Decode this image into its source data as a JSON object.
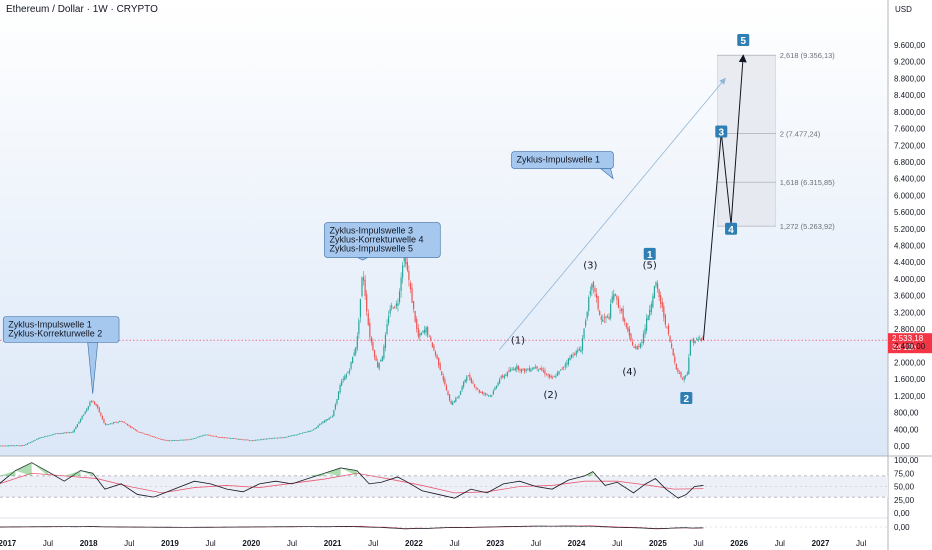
{
  "header": {
    "title": "Ethereum / Dollar · 1W · CRYPTO"
  },
  "chart_data": {
    "type": "candlestick",
    "symbol": "Ethereum / Dollar",
    "interval": "1W",
    "exchange": "CRYPTO",
    "currency_label": "USD",
    "x_tick_labels": [
      "2017",
      "Jul",
      "2018",
      "Jul",
      "2019",
      "Jul",
      "2020",
      "Jul",
      "2021",
      "Jul",
      "2022",
      "Jul",
      "2023",
      "Jul",
      "2024",
      "Jul",
      "2025",
      "Jul",
      "2026",
      "Jul",
      "2027",
      "Jul"
    ],
    "y_ticks": [
      0,
      400,
      800,
      1200,
      1600,
      2000,
      2400,
      2800,
      3200,
      3600,
      4000,
      4400,
      4800,
      5200,
      5600,
      6000,
      6400,
      6800,
      7200,
      7600,
      8000,
      8400,
      8800,
      9200,
      9600
    ],
    "y_tick_labels": [
      "0,00",
      "400,00",
      "800,00",
      "1.200,00",
      "1.600,00",
      "2.000,00",
      "2.400,00",
      "2.800,00",
      "3.200,00",
      "3.600,00",
      "4.000,00",
      "4.400,00",
      "4.800,00",
      "5.200,00",
      "5.600,00",
      "6.000,00",
      "6.400,00",
      "6.800,00",
      "7.200,00",
      "7.600,00",
      "8.000,00",
      "8.400,00",
      "8.800,00",
      "9.200,00",
      "9.600,00"
    ],
    "current_price": {
      "value": 2533.18,
      "label": "2.533,18",
      "countdown": "3d 13h",
      "color": "#f23645"
    },
    "price_path": [
      [
        2016.9,
        10
      ],
      [
        2017.2,
        15
      ],
      [
        2017.4,
        200
      ],
      [
        2017.6,
        300
      ],
      [
        2017.8,
        330
      ],
      [
        2017.95,
        800
      ],
      [
        2018.03,
        1100
      ],
      [
        2018.1,
        950
      ],
      [
        2018.2,
        500
      ],
      [
        2018.4,
        600
      ],
      [
        2018.6,
        350
      ],
      [
        2018.9,
        150
      ],
      [
        2019.0,
        130
      ],
      [
        2019.25,
        160
      ],
      [
        2019.45,
        280
      ],
      [
        2019.6,
        210
      ],
      [
        2019.8,
        180
      ],
      [
        2020.0,
        130
      ],
      [
        2020.2,
        180
      ],
      [
        2020.4,
        210
      ],
      [
        2020.55,
        270
      ],
      [
        2020.75,
        380
      ],
      [
        2020.9,
        600
      ],
      [
        2021.0,
        730
      ],
      [
        2021.1,
        1500
      ],
      [
        2021.2,
        1800
      ],
      [
        2021.3,
        2500
      ],
      [
        2021.37,
        4200
      ],
      [
        2021.45,
        2700
      ],
      [
        2021.55,
        1900
      ],
      [
        2021.62,
        2200
      ],
      [
        2021.7,
        3300
      ],
      [
        2021.8,
        3400
      ],
      [
        2021.88,
        4700
      ],
      [
        2021.95,
        3800
      ],
      [
        2022.05,
        2600
      ],
      [
        2022.15,
        2800
      ],
      [
        2022.3,
        2000
      ],
      [
        2022.45,
        1000
      ],
      [
        2022.55,
        1200
      ],
      [
        2022.65,
        1700
      ],
      [
        2022.8,
        1300
      ],
      [
        2022.95,
        1200
      ],
      [
        2023.05,
        1600
      ],
      [
        2023.25,
        1900
      ],
      [
        2023.35,
        1800
      ],
      [
        2023.5,
        1900
      ],
      [
        2023.55,
        1850
      ],
      [
        2023.7,
        1600
      ],
      [
        2023.8,
        1800
      ],
      [
        2023.95,
        2200
      ],
      [
        2024.05,
        2300
      ],
      [
        2024.15,
        3500
      ],
      [
        2024.2,
        3900
      ],
      [
        2024.3,
        3000
      ],
      [
        2024.4,
        3100
      ],
      [
        2024.45,
        3700
      ],
      [
        2024.55,
        3200
      ],
      [
        2024.65,
        2600
      ],
      [
        2024.72,
        2300
      ],
      [
        2024.8,
        2500
      ],
      [
        2024.9,
        3300
      ],
      [
        2024.97,
        3900
      ],
      [
        2025.05,
        3300
      ],
      [
        2025.15,
        2500
      ],
      [
        2025.22,
        1900
      ],
      [
        2025.3,
        1600
      ],
      [
        2025.36,
        1750
      ],
      [
        2025.4,
        2500
      ],
      [
        2025.5,
        2550
      ],
      [
        2025.56,
        2533
      ]
    ],
    "elliott_projection": [
      [
        2025.56,
        2533
      ],
      [
        2025.78,
        7500
      ],
      [
        2025.9,
        5300
      ],
      [
        2026.05,
        9356
      ]
    ],
    "fib_box": {
      "x_start": 2025.73,
      "x_end": 2026.45,
      "y_top": 9356.13,
      "y_bottom": 5263.92
    },
    "fib_levels": [
      {
        "value": 9356.13,
        "label": "2,618 (9.356,13)"
      },
      {
        "value": 7477.24,
        "label": "2 (7.477,24)"
      },
      {
        "value": 6315.85,
        "label": "1,618 (6.315,85)"
      },
      {
        "value": 5263.92,
        "label": "1,272 (5.263,92)"
      }
    ],
    "trend_arrow": {
      "from": [
        2023.05,
        2300
      ],
      "to": [
        2025.83,
        8800
      ]
    },
    "wave_labels": [
      {
        "text": "(1)",
        "x": 2023.28,
        "y": 2450
      },
      {
        "text": "(2)",
        "x": 2023.68,
        "y": 1150
      },
      {
        "text": "(3)",
        "x": 2024.17,
        "y": 4250
      },
      {
        "text": "(4)",
        "x": 2024.65,
        "y": 1700
      },
      {
        "text": "(5)",
        "x": 2024.9,
        "y": 4250
      }
    ],
    "wave_badges": [
      {
        "text": "1",
        "x": 2024.9,
        "y": 4600
      },
      {
        "text": "2",
        "x": 2025.35,
        "y": 1150
      },
      {
        "text": "3",
        "x": 2025.78,
        "y": 7530
      },
      {
        "text": "4",
        "x": 2025.9,
        "y": 5200
      },
      {
        "text": "5",
        "x": 2026.05,
        "y": 9720
      }
    ],
    "annotations": [
      {
        "lines": [
          "Zyklus-Impulswelle 1",
          "Zyklus-Korrekturwelle 2"
        ],
        "box_x": 2016.95,
        "box_y": 3100,
        "pointer": [
          2018.05,
          1250
        ]
      },
      {
        "lines": [
          "Zyklus-Impulswelle 3",
          "Zyklus-Korrekturwelle 4",
          "Zyklus-Impulswelle 5"
        ],
        "box_x": 2020.9,
        "box_y": 5350,
        "pointer": [
          2021.37,
          4450
        ]
      },
      {
        "lines": [
          "Zyklus-Impulswelle 1"
        ],
        "box_x": 2023.2,
        "box_y": 7050,
        "pointer": [
          2024.45,
          6400
        ]
      }
    ],
    "rsi": {
      "y_tick_labels": [
        "100,00",
        "75,00",
        "50,00",
        "25,00",
        "0,00"
      ],
      "y_ticks": [
        100,
        75,
        50,
        25,
        0
      ],
      "bands": [
        70,
        30
      ],
      "values": [
        [
          2016.9,
          55
        ],
        [
          2017.1,
          80
        ],
        [
          2017.3,
          95
        ],
        [
          2017.5,
          78
        ],
        [
          2017.7,
          60
        ],
        [
          2017.9,
          80
        ],
        [
          2018.05,
          75
        ],
        [
          2018.2,
          45
        ],
        [
          2018.4,
          55
        ],
        [
          2018.6,
          35
        ],
        [
          2018.8,
          30
        ],
        [
          2019.0,
          42
        ],
        [
          2019.3,
          60
        ],
        [
          2019.5,
          55
        ],
        [
          2019.7,
          45
        ],
        [
          2019.9,
          40
        ],
        [
          2020.1,
          55
        ],
        [
          2020.3,
          60
        ],
        [
          2020.5,
          55
        ],
        [
          2020.7,
          65
        ],
        [
          2020.9,
          75
        ],
        [
          2021.1,
          85
        ],
        [
          2021.3,
          80
        ],
        [
          2021.45,
          55
        ],
        [
          2021.6,
          58
        ],
        [
          2021.8,
          68
        ],
        [
          2021.9,
          60
        ],
        [
          2022.1,
          42
        ],
        [
          2022.3,
          35
        ],
        [
          2022.5,
          28
        ],
        [
          2022.7,
          45
        ],
        [
          2022.9,
          38
        ],
        [
          2023.1,
          55
        ],
        [
          2023.3,
          60
        ],
        [
          2023.5,
          50
        ],
        [
          2023.7,
          45
        ],
        [
          2023.9,
          62
        ],
        [
          2024.1,
          70
        ],
        [
          2024.2,
          78
        ],
        [
          2024.35,
          52
        ],
        [
          2024.5,
          58
        ],
        [
          2024.7,
          38
        ],
        [
          2024.85,
          55
        ],
        [
          2024.97,
          65
        ],
        [
          2025.1,
          45
        ],
        [
          2025.25,
          28
        ],
        [
          2025.35,
          35
        ],
        [
          2025.45,
          50
        ],
        [
          2025.56,
          52
        ]
      ],
      "ma": [
        [
          2016.9,
          55
        ],
        [
          2017.3,
          75
        ],
        [
          2017.7,
          70
        ],
        [
          2018.1,
          65
        ],
        [
          2018.5,
          50
        ],
        [
          2018.9,
          38
        ],
        [
          2019.3,
          48
        ],
        [
          2019.7,
          52
        ],
        [
          2020.1,
          48
        ],
        [
          2020.5,
          56
        ],
        [
          2020.9,
          64
        ],
        [
          2021.3,
          75
        ],
        [
          2021.7,
          64
        ],
        [
          2022.1,
          52
        ],
        [
          2022.5,
          38
        ],
        [
          2022.9,
          40
        ],
        [
          2023.3,
          50
        ],
        [
          2023.7,
          52
        ],
        [
          2024.1,
          60
        ],
        [
          2024.5,
          60
        ],
        [
          2024.9,
          52
        ],
        [
          2025.2,
          45
        ],
        [
          2025.56,
          46
        ]
      ]
    },
    "macd": {
      "y_tick_labels": [
        "0,00"
      ],
      "y_ticks": [
        0
      ]
    }
  }
}
